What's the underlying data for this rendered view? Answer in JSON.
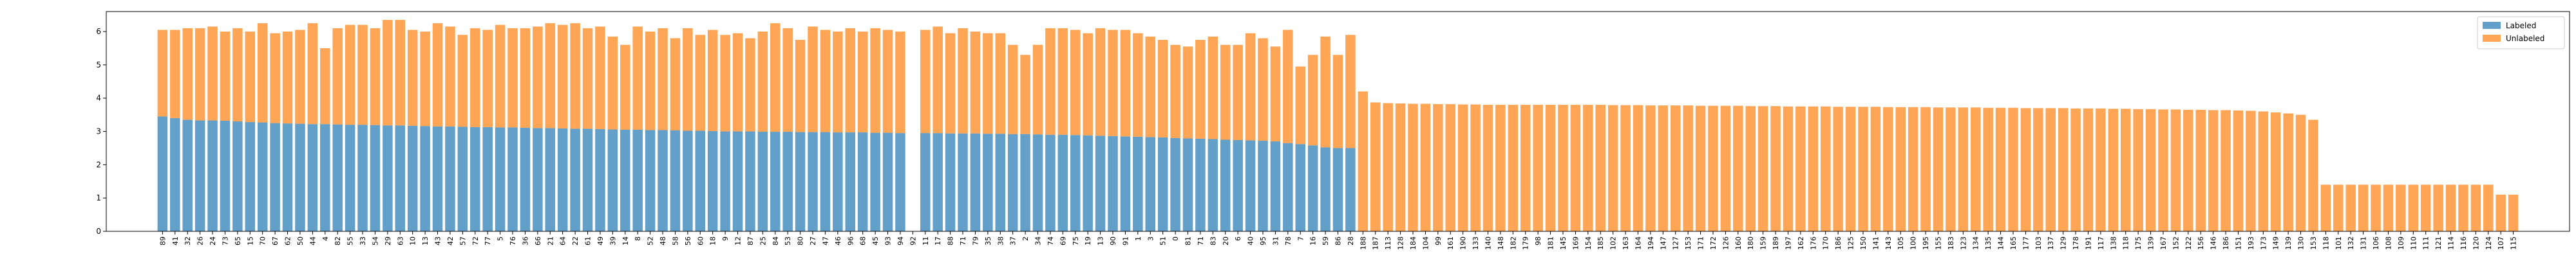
{
  "chart_data": {
    "type": "stacked_bar",
    "categories": [
      "89",
      "41",
      "32",
      "26",
      "24",
      "73",
      "65",
      "15",
      "70",
      "67",
      "62",
      "50",
      "44",
      "4",
      "82",
      "55",
      "33",
      "54",
      "29",
      "63",
      "10",
      "13",
      "43",
      "42",
      "57",
      "72",
      "77",
      "5",
      "76",
      "36",
      "66",
      "21",
      "64",
      "22",
      "61",
      "49",
      "39",
      "14",
      "8",
      "52",
      "48",
      "58",
      "56",
      "60",
      "18",
      "9",
      "12",
      "87",
      "25",
      "84",
      "53",
      "80",
      "27",
      "47",
      "46",
      "96",
      "68",
      "45",
      "93",
      "94",
      "92",
      "11",
      "17",
      "88",
      "71",
      "79",
      "35",
      "38",
      "37",
      "2",
      "34",
      "74",
      "69",
      "75",
      "19",
      "13",
      "90",
      "91",
      "1",
      "3",
      "51",
      "0",
      "81",
      "71",
      "83",
      "20",
      "6",
      "40",
      "95",
      "31",
      "78",
      "7",
      "16",
      "59",
      "86",
      "28",
      "188",
      "187",
      "113",
      "128",
      "184",
      "104",
      "99",
      "161",
      "190",
      "133",
      "140",
      "148",
      "182",
      "179",
      "98",
      "181",
      "145",
      "169",
      "154",
      "185",
      "102",
      "163",
      "164",
      "194",
      "147",
      "127",
      "153",
      "171",
      "172",
      "126",
      "160",
      "180",
      "159",
      "189",
      "197",
      "162",
      "176",
      "170",
      "186",
      "125",
      "150",
      "141",
      "143",
      "105",
      "100",
      "195",
      "155",
      "183",
      "123",
      "134",
      "135",
      "144",
      "165",
      "177",
      "103",
      "137",
      "129",
      "178",
      "191",
      "117",
      "138",
      "118",
      "175",
      "139",
      "167",
      "152",
      "122",
      "156",
      "146",
      "186",
      "151",
      "193",
      "173",
      "149",
      "139",
      "130",
      "153",
      "118",
      "101",
      "132",
      "131",
      "106",
      "108",
      "109",
      "110",
      "111",
      "121",
      "114",
      "116",
      "120",
      "124",
      "107",
      "115"
    ],
    "series": [
      {
        "name": "Labeled",
        "color": "#1f77b4",
        "values": [
          3.45,
          3.4,
          3.35,
          3.33,
          3.33,
          3.32,
          3.3,
          3.28,
          3.27,
          3.25,
          3.24,
          3.23,
          3.22,
          3.22,
          3.21,
          3.2,
          3.2,
          3.19,
          3.18,
          3.18,
          3.17,
          3.16,
          3.15,
          3.15,
          3.14,
          3.13,
          3.13,
          3.12,
          3.12,
          3.11,
          3.1,
          3.1,
          3.09,
          3.08,
          3.08,
          3.07,
          3.06,
          3.05,
          3.05,
          3.04,
          3.04,
          3.03,
          3.02,
          3.02,
          3.01,
          3.0,
          3.0,
          3.0,
          2.99,
          2.99,
          2.99,
          2.98,
          2.98,
          2.98,
          2.97,
          2.97,
          2.97,
          2.96,
          2.96,
          2.95,
          null,
          2.95,
          2.95,
          2.94,
          2.94,
          2.94,
          2.93,
          2.93,
          2.92,
          2.92,
          2.91,
          2.9,
          2.9,
          2.89,
          2.88,
          2.87,
          2.86,
          2.85,
          2.84,
          2.83,
          2.82,
          2.8,
          2.79,
          2.78,
          2.77,
          2.75,
          2.74,
          2.73,
          2.72,
          2.7,
          2.65,
          2.62,
          2.58,
          2.52,
          2.5,
          2.5,
          null,
          null,
          null,
          null,
          null,
          null,
          null,
          null,
          null,
          null,
          null,
          null,
          null,
          null,
          null,
          null,
          null,
          null,
          null,
          null,
          null,
          null,
          null,
          null,
          null,
          null,
          null,
          null,
          null,
          null,
          null,
          null,
          null,
          null,
          null,
          null,
          null,
          null,
          null,
          null,
          null,
          null,
          null,
          null,
          null,
          null,
          null,
          null,
          null,
          null,
          null,
          null,
          null,
          null,
          null,
          null,
          null,
          null,
          null,
          null,
          null,
          null,
          null,
          null,
          null,
          null,
          null,
          null,
          null,
          null,
          null,
          null,
          null,
          null,
          null,
          null,
          null,
          null,
          null,
          null,
          null,
          null,
          null,
          null,
          null,
          null,
          null,
          null,
          null,
          null,
          null,
          null,
          null
        ]
      },
      {
        "name": "Unlabeled",
        "color": "#ff7f0e",
        "values": [
          2.6,
          2.65,
          2.75,
          2.77,
          2.82,
          2.68,
          2.8,
          2.72,
          2.98,
          2.7,
          2.76,
          2.82,
          3.03,
          2.28,
          2.89,
          3.0,
          3.0,
          2.91,
          3.17,
          3.17,
          2.88,
          2.84,
          3.1,
          3.0,
          2.76,
          2.97,
          2.92,
          3.08,
          2.98,
          2.99,
          3.05,
          3.15,
          3.11,
          3.17,
          3.02,
          3.08,
          2.79,
          2.55,
          3.1,
          2.96,
          3.06,
          2.77,
          3.08,
          2.88,
          3.04,
          2.9,
          2.95,
          2.8,
          3.01,
          3.26,
          3.11,
          2.77,
          3.17,
          3.07,
          3.03,
          3.13,
          3.03,
          3.14,
          3.09,
          3.05,
          null,
          3.1,
          3.2,
          3.01,
          3.16,
          3.06,
          3.02,
          3.02,
          2.68,
          2.38,
          2.69,
          3.2,
          3.2,
          3.16,
          3.07,
          3.23,
          3.19,
          3.2,
          3.11,
          3.02,
          2.93,
          2.8,
          2.76,
          2.97,
          3.08,
          2.85,
          2.86,
          3.22,
          3.08,
          2.85,
          3.4,
          2.33,
          2.72,
          3.33,
          2.8,
          3.4,
          4.2,
          3.87,
          3.85,
          3.84,
          3.83,
          3.83,
          3.82,
          3.82,
          3.81,
          3.81,
          3.8,
          3.8,
          3.8,
          3.8,
          3.8,
          3.8,
          3.8,
          3.8,
          3.8,
          3.8,
          3.79,
          3.79,
          3.79,
          3.78,
          3.78,
          3.78,
          3.78,
          3.77,
          3.77,
          3.77,
          3.77,
          3.76,
          3.76,
          3.76,
          3.75,
          3.75,
          3.75,
          3.75,
          3.74,
          3.74,
          3.74,
          3.74,
          3.73,
          3.73,
          3.73,
          3.73,
          3.72,
          3.72,
          3.72,
          3.72,
          3.71,
          3.71,
          3.71,
          3.7,
          3.7,
          3.7,
          3.7,
          3.69,
          3.69,
          3.69,
          3.68,
          3.68,
          3.67,
          3.67,
          3.66,
          3.66,
          3.65,
          3.65,
          3.64,
          3.64,
          3.63,
          3.62,
          3.6,
          3.57,
          3.54,
          3.5,
          3.35,
          1.4,
          1.4,
          1.4,
          1.4,
          1.4,
          1.4,
          1.4,
          1.4,
          1.4,
          1.4,
          1.4,
          1.4,
          1.4,
          1.4,
          1.1,
          1.1
        ]
      }
    ],
    "ylim": [
      0,
      6.6
    ],
    "yticks": [
      0,
      1,
      2,
      3,
      4,
      5,
      6
    ],
    "legend": "upper right",
    "opacity": 0.7
  }
}
